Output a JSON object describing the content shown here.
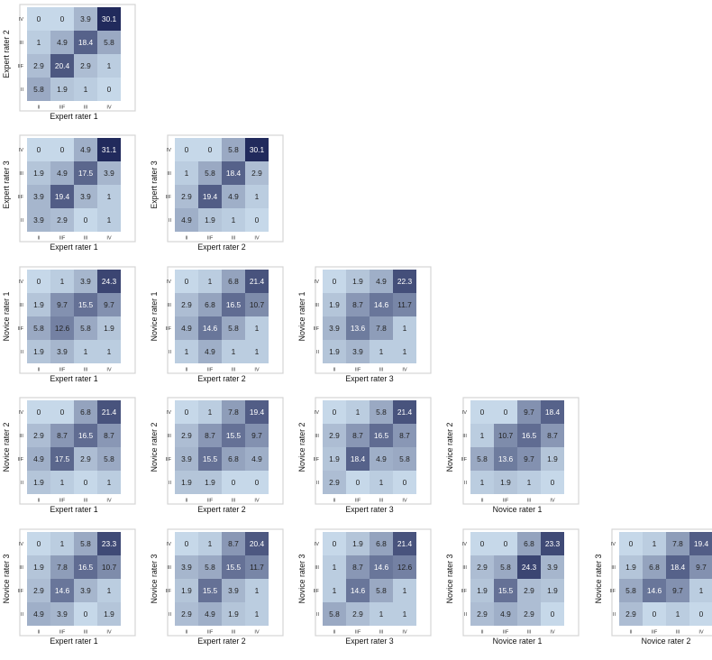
{
  "chart_data": {
    "type": "heatmap",
    "categories": [
      "II",
      "IIF",
      "III",
      "IV"
    ],
    "color_scale": {
      "low": "#c6d8e9",
      "high": "#212a5c"
    },
    "panels": [
      {
        "xlabel": "Expert rater 1",
        "ylabel": "Expert rater 2",
        "rows": {
          "IV": [
            0,
            0,
            3.9,
            30.1
          ],
          "III": [
            1,
            4.9,
            18.4,
            5.8
          ],
          "IIF": [
            2.9,
            20.4,
            2.9,
            1
          ],
          "II": [
            5.8,
            1.9,
            1,
            0
          ]
        }
      },
      {
        "xlabel": "Expert rater 1",
        "ylabel": "Expert rater 3",
        "rows": {
          "IV": [
            0,
            0,
            4.9,
            31.1
          ],
          "III": [
            1.9,
            4.9,
            17.5,
            3.9
          ],
          "IIF": [
            3.9,
            19.4,
            3.9,
            1
          ],
          "II": [
            3.9,
            2.9,
            0,
            1
          ]
        }
      },
      {
        "xlabel": "Expert rater 2",
        "ylabel": "Expert rater 3",
        "rows": {
          "IV": [
            0,
            0,
            5.8,
            30.1
          ],
          "III": [
            1,
            5.8,
            18.4,
            2.9
          ],
          "IIF": [
            2.9,
            19.4,
            4.9,
            1
          ],
          "II": [
            4.9,
            1.9,
            1,
            0
          ]
        }
      },
      {
        "xlabel": "Expert rater 1",
        "ylabel": "Novice rater 1",
        "rows": {
          "IV": [
            0,
            1,
            3.9,
            24.3
          ],
          "III": [
            1.9,
            9.7,
            15.5,
            9.7
          ],
          "IIF": [
            5.8,
            12.6,
            5.8,
            1.9
          ],
          "II": [
            1.9,
            3.9,
            1,
            1
          ]
        }
      },
      {
        "xlabel": "Expert rater 2",
        "ylabel": "Novice rater 1",
        "rows": {
          "IV": [
            0,
            1,
            6.8,
            21.4
          ],
          "III": [
            2.9,
            6.8,
            16.5,
            10.7
          ],
          "IIF": [
            4.9,
            14.6,
            5.8,
            1
          ],
          "II": [
            1,
            4.9,
            1,
            1
          ]
        }
      },
      {
        "xlabel": "Expert rater 3",
        "ylabel": "Novice rater 1",
        "rows": {
          "IV": [
            0,
            1.9,
            4.9,
            22.3
          ],
          "III": [
            1.9,
            8.7,
            14.6,
            11.7
          ],
          "IIF": [
            3.9,
            13.6,
            7.8,
            1
          ],
          "II": [
            1.9,
            3.9,
            1,
            1
          ]
        }
      },
      {
        "xlabel": "Expert rater 1",
        "ylabel": "Novice rater 2",
        "rows": {
          "IV": [
            0,
            0,
            6.8,
            21.4
          ],
          "III": [
            2.9,
            8.7,
            16.5,
            8.7
          ],
          "IIF": [
            4.9,
            17.5,
            2.9,
            5.8
          ],
          "II": [
            1.9,
            1,
            0,
            1
          ]
        }
      },
      {
        "xlabel": "Expert rater 2",
        "ylabel": "Novice rater 2",
        "rows": {
          "IV": [
            0,
            1,
            7.8,
            19.4
          ],
          "III": [
            2.9,
            8.7,
            15.5,
            9.7
          ],
          "IIF": [
            3.9,
            15.5,
            6.8,
            4.9
          ],
          "II": [
            1.9,
            1.9,
            0,
            0
          ]
        }
      },
      {
        "xlabel": "Expert rater 3",
        "ylabel": "Novice rater 2",
        "rows": {
          "IV": [
            0,
            1,
            5.8,
            21.4
          ],
          "III": [
            2.9,
            8.7,
            16.5,
            8.7
          ],
          "IIF": [
            1.9,
            18.4,
            4.9,
            5.8
          ],
          "II": [
            2.9,
            0,
            1,
            0
          ]
        }
      },
      {
        "xlabel": "Novice rater 1",
        "ylabel": "Novice rater 2",
        "rows": {
          "IV": [
            0,
            0,
            9.7,
            18.4
          ],
          "III": [
            1,
            10.7,
            16.5,
            8.7
          ],
          "IIF": [
            5.8,
            13.6,
            9.7,
            1.9
          ],
          "II": [
            1,
            1.9,
            1,
            0
          ]
        }
      },
      {
        "xlabel": "Expert rater 1",
        "ylabel": "Novice rater 3",
        "rows": {
          "IV": [
            0,
            1,
            5.8,
            23.3
          ],
          "III": [
            1.9,
            7.8,
            16.5,
            10.7
          ],
          "IIF": [
            2.9,
            14.6,
            3.9,
            1
          ],
          "II": [
            4.9,
            3.9,
            0,
            1.9
          ]
        }
      },
      {
        "xlabel": "Expert rater 2",
        "ylabel": "Novice rater 3",
        "rows": {
          "IV": [
            0,
            1,
            8.7,
            20.4
          ],
          "III": [
            3.9,
            5.8,
            15.5,
            11.7
          ],
          "IIF": [
            1.9,
            15.5,
            3.9,
            1
          ],
          "II": [
            2.9,
            4.9,
            1.9,
            1
          ]
        }
      },
      {
        "xlabel": "Expert rater 3",
        "ylabel": "Novice rater 3",
        "rows": {
          "IV": [
            0,
            1.9,
            6.8,
            21.4
          ],
          "III": [
            1,
            8.7,
            14.6,
            12.6
          ],
          "IIF": [
            1,
            14.6,
            5.8,
            1
          ],
          "II": [
            5.8,
            2.9,
            1,
            1
          ]
        }
      },
      {
        "xlabel": "Novice rater 1",
        "ylabel": "Novice rater 3",
        "rows": {
          "IV": [
            0,
            0,
            6.8,
            23.3
          ],
          "III": [
            2.9,
            5.8,
            24.3,
            3.9
          ],
          "IIF": [
            1.9,
            15.5,
            2.9,
            1.9
          ],
          "II": [
            2.9,
            4.9,
            2.9,
            0
          ]
        }
      },
      {
        "xlabel": "Novice rater 2",
        "ylabel": "Novice rater 3",
        "rows": {
          "IV": [
            0,
            1,
            7.8,
            19.4
          ],
          "III": [
            1.9,
            6.8,
            18.4,
            9.7
          ],
          "IIF": [
            5.8,
            14.6,
            9.7,
            1
          ],
          "II": [
            2.9,
            0,
            1,
            0
          ]
        }
      }
    ]
  }
}
